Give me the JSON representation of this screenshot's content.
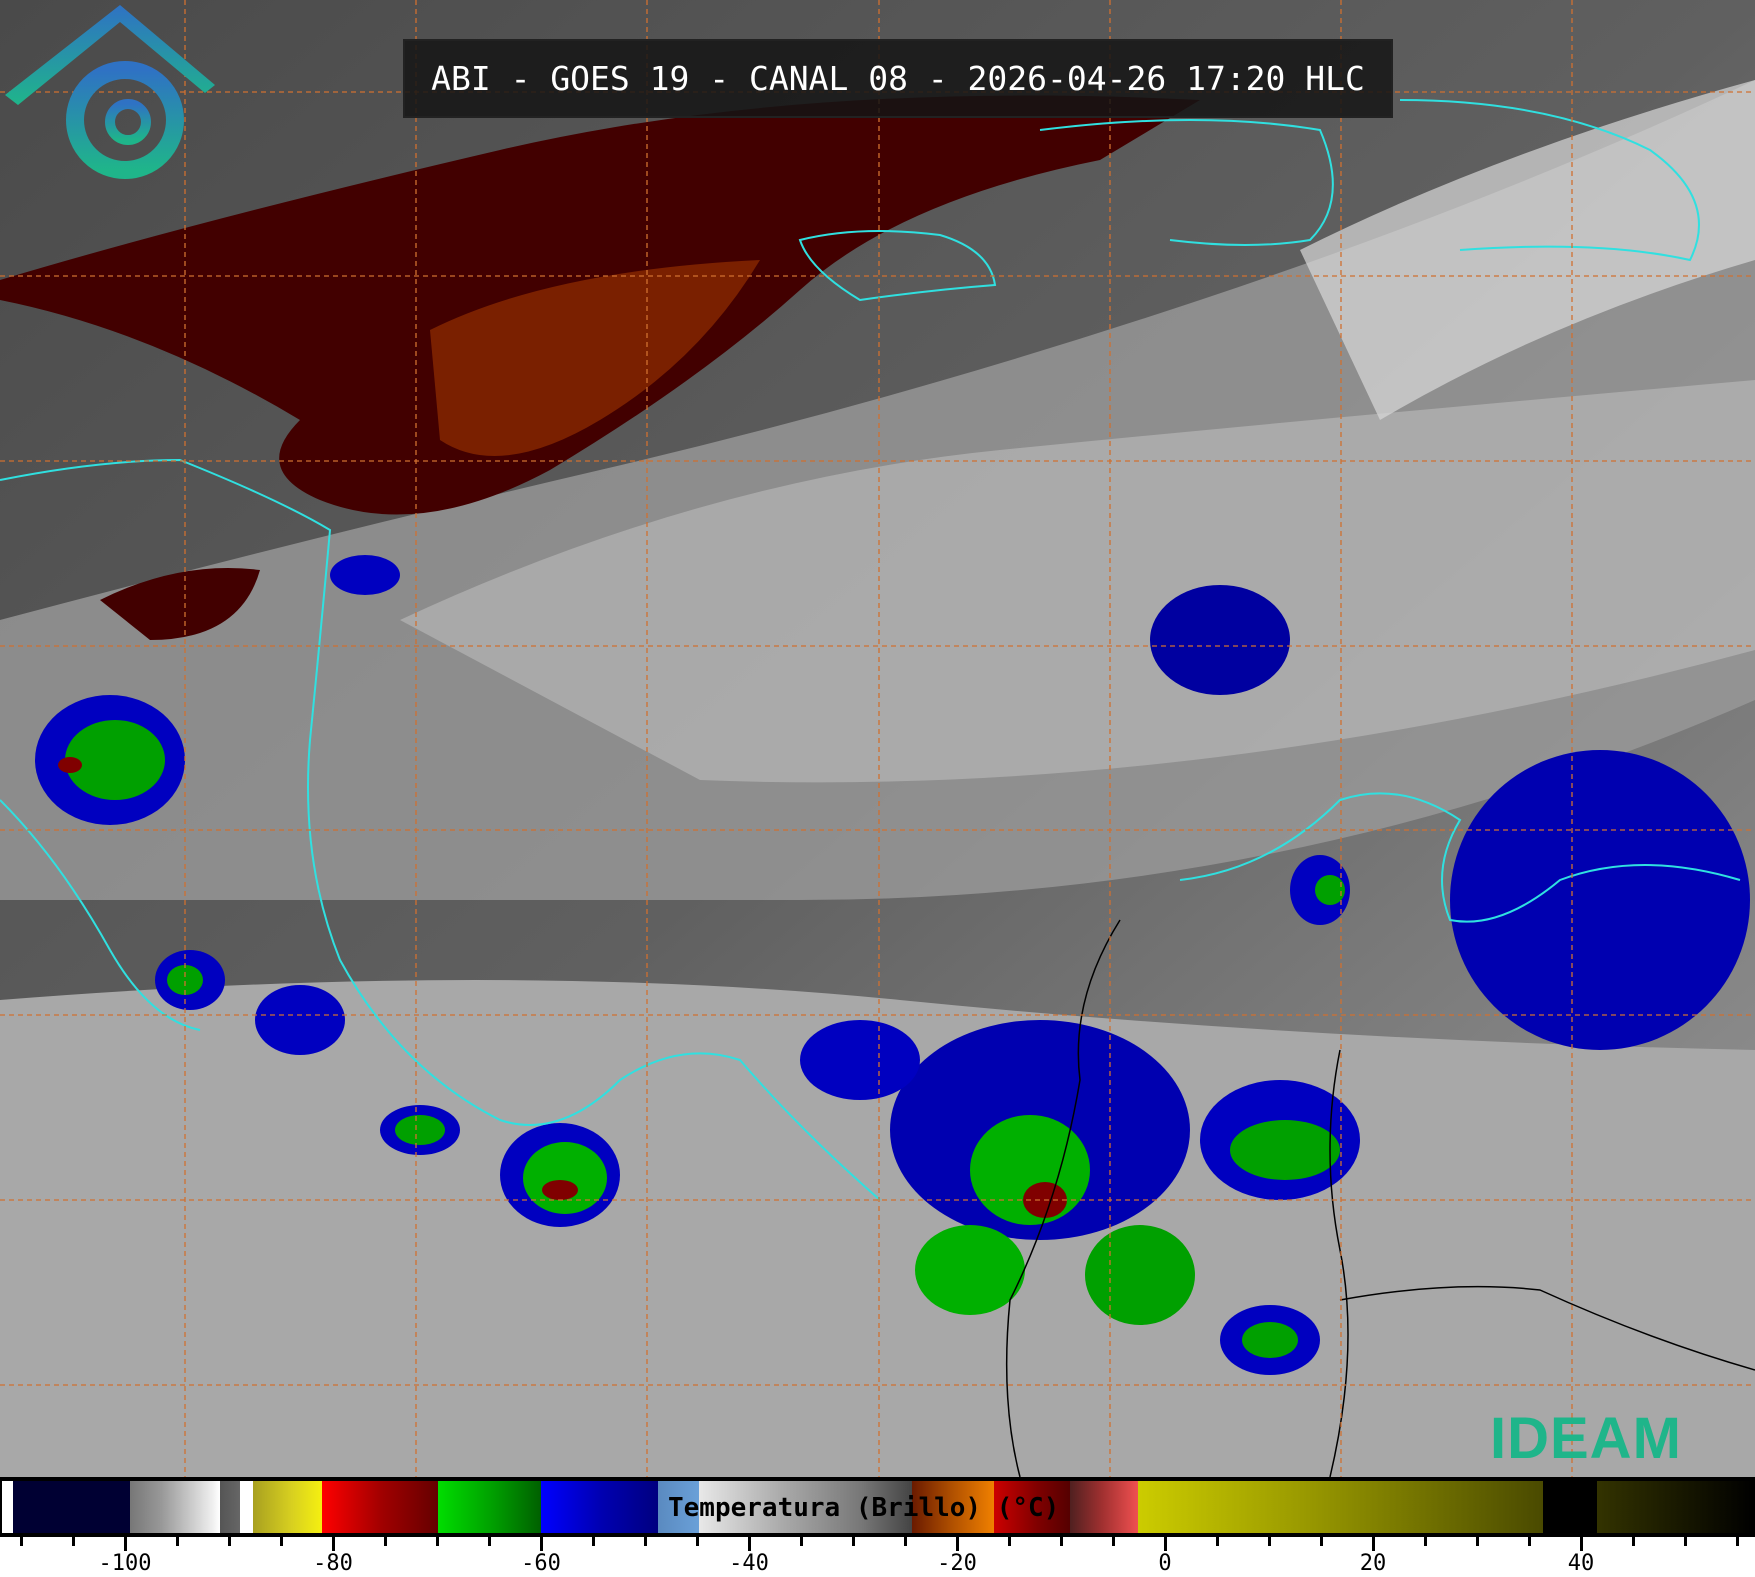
{
  "title": "ABI - GOES 19 - CANAL 08 - 2026-04-26 17:20 HLC",
  "colorbar": {
    "label": "Temperatura (Brillo) (°C)",
    "range": [
      -112,
      56.7
    ],
    "major_ticks": [
      -100,
      -80,
      -60,
      -40,
      -20,
      0,
      20,
      40
    ],
    "tick_labels": [
      "-100",
      "-80",
      "-60",
      "-40",
      "-20",
      "0",
      "20",
      "40"
    ],
    "minor_step": 5
  },
  "logo": {
    "text": "IDEAM",
    "colors": [
      "#2f7fc4",
      "#1fb58a"
    ]
  },
  "colors": {
    "grid": "#d07030",
    "coastline": "#30e0e0",
    "borders": "#000000"
  }
}
